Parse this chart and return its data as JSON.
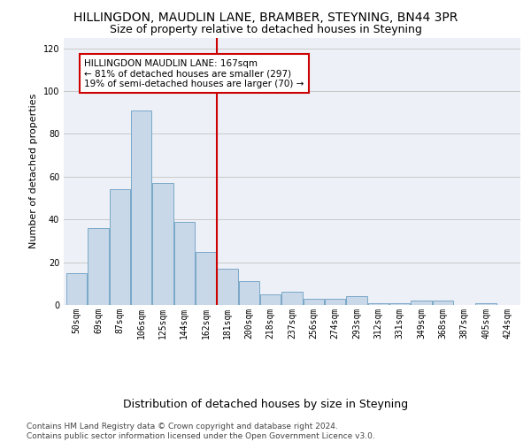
{
  "title": "HILLINGDON, MAUDLIN LANE, BRAMBER, STEYNING, BN44 3PR",
  "subtitle": "Size of property relative to detached houses in Steyning",
  "xlabel": "Distribution of detached houses by size in Steyning",
  "ylabel": "Number of detached properties",
  "bar_color": "#c8d8e8",
  "bar_edge_color": "#7aa8c8",
  "categories": [
    "50sqm",
    "69sqm",
    "87sqm",
    "106sqm",
    "125sqm",
    "144sqm",
    "162sqm",
    "181sqm",
    "200sqm",
    "218sqm",
    "237sqm",
    "256sqm",
    "274sqm",
    "293sqm",
    "312sqm",
    "331sqm",
    "349sqm",
    "368sqm",
    "387sqm",
    "405sqm",
    "424sqm"
  ],
  "values": [
    15,
    36,
    54,
    91,
    57,
    39,
    25,
    17,
    11,
    5,
    6,
    3,
    3,
    4,
    1,
    1,
    2,
    2,
    0,
    1,
    0
  ],
  "vline_x": 6.5,
  "vline_color": "#cc0000",
  "annotation_text": "HILLINGDON MAUDLIN LANE: 167sqm\n← 81% of detached houses are smaller (297)\n19% of semi-detached houses are larger (70) →",
  "ylim": [
    0,
    125
  ],
  "yticks": [
    0,
    20,
    40,
    60,
    80,
    100,
    120
  ],
  "grid_color": "#c8c8c8",
  "bg_color": "#edf1f7",
  "footer": "Contains HM Land Registry data © Crown copyright and database right 2024.\nContains public sector information licensed under the Open Government Licence v3.0.",
  "title_fontsize": 10,
  "subtitle_fontsize": 9,
  "xlabel_fontsize": 9,
  "ylabel_fontsize": 8,
  "tick_fontsize": 7,
  "annot_fontsize": 7.5,
  "footer_fontsize": 6.5
}
